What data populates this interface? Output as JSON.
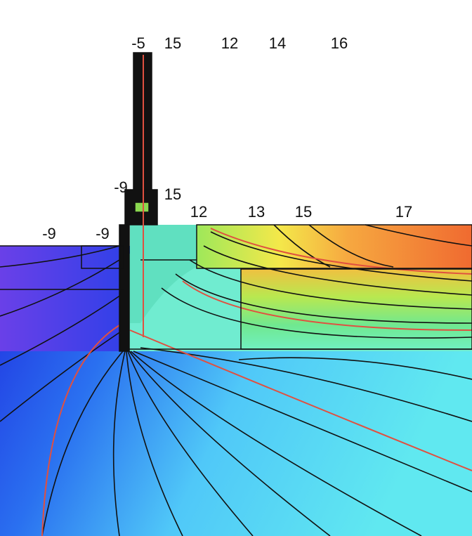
{
  "labels": {
    "top": [
      "-5",
      "15",
      "12",
      "14",
      "16"
    ],
    "middle": [
      "-9",
      "15",
      "12",
      "13",
      "15",
      "17"
    ],
    "left": [
      "-9",
      "-9"
    ]
  }
}
